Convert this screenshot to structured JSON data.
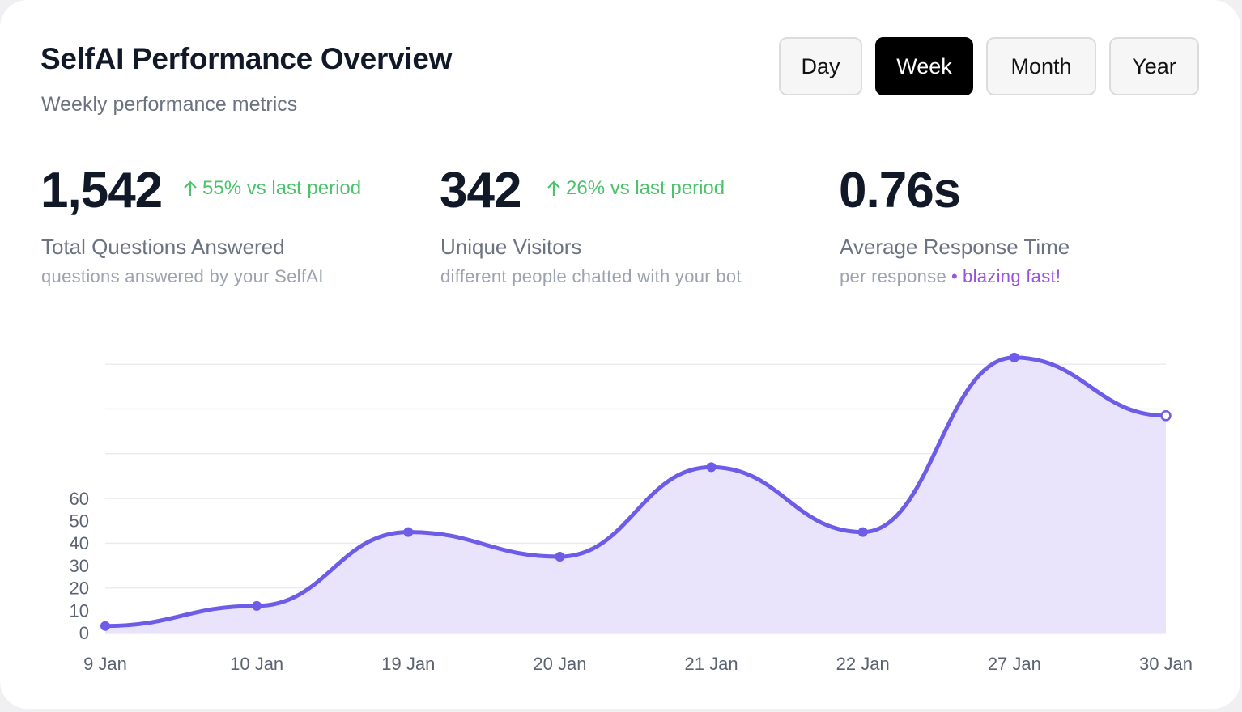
{
  "header": {
    "title": "SelfAI Performance Overview",
    "subtitle": "Weekly performance metrics"
  },
  "periods": [
    {
      "label": "Day",
      "active": false
    },
    {
      "label": "Week",
      "active": true
    },
    {
      "label": "Month",
      "active": false
    },
    {
      "label": "Year",
      "active": false
    }
  ],
  "metrics": [
    {
      "value": "1,542",
      "change": "55% vs last period",
      "label": "Total Questions Answered",
      "sub": "questions answered by your SelfAI"
    },
    {
      "value": "342",
      "change": "26% vs last period",
      "label": "Unique Visitors",
      "sub": "different people chatted with your bot"
    },
    {
      "value": "0.76s",
      "label": "Average Response Time",
      "sub": "per response",
      "sub_highlight": "blazing fast!"
    }
  ],
  "colors": {
    "accent": "#6c5ce7",
    "area_fill": "#e9e4fc",
    "positive": "#4cc26b",
    "highlight": "#9b51e0"
  },
  "chart_data": {
    "type": "area",
    "title": "",
    "xlabel": "",
    "ylabel": "",
    "categories": [
      "9 Jan",
      "10 Jan",
      "19 Jan",
      "20 Jan",
      "21 Jan",
      "22 Jan",
      "27 Jan",
      "30 Jan"
    ],
    "values": [
      3,
      12,
      45,
      34,
      74,
      45,
      123,
      97
    ],
    "y_ticks": [
      "0",
      "10",
      "20",
      "30",
      "40",
      "50",
      "60"
    ],
    "ylim": [
      0,
      120
    ],
    "grid": true,
    "legend": "none"
  }
}
